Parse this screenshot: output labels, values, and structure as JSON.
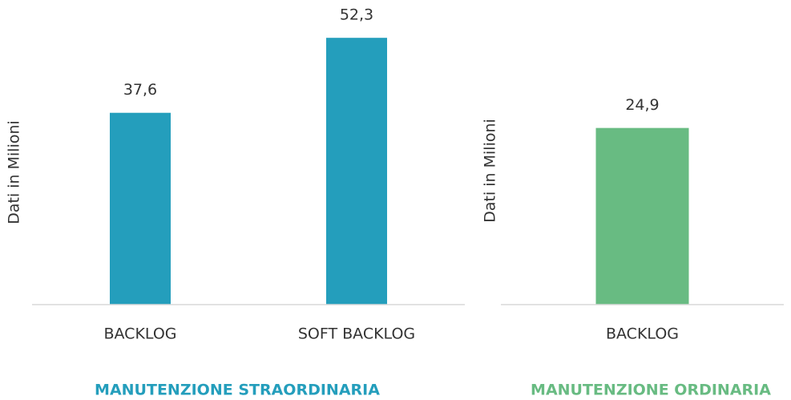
{
  "chart_data": [
    {
      "type": "bar",
      "title": "MANUTENZIONE STRAORDINARIA",
      "ylabel": "Dati in Milioni",
      "categories": [
        "BACKLOG",
        "SOFT BACKLOG"
      ],
      "values": [
        37.6,
        52.3
      ],
      "value_labels": [
        "37,6",
        "52,3"
      ],
      "color": "#249ebc",
      "ylim": [
        0,
        55
      ]
    },
    {
      "type": "bar",
      "title": "MANUTENZIONE ORDINARIA",
      "ylabel": "Dati in Milioni",
      "categories": [
        "BACKLOG"
      ],
      "values": [
        24.9
      ],
      "value_labels": [
        "24,9"
      ],
      "color": "#68bb82",
      "ylim": [
        0,
        40
      ]
    }
  ]
}
